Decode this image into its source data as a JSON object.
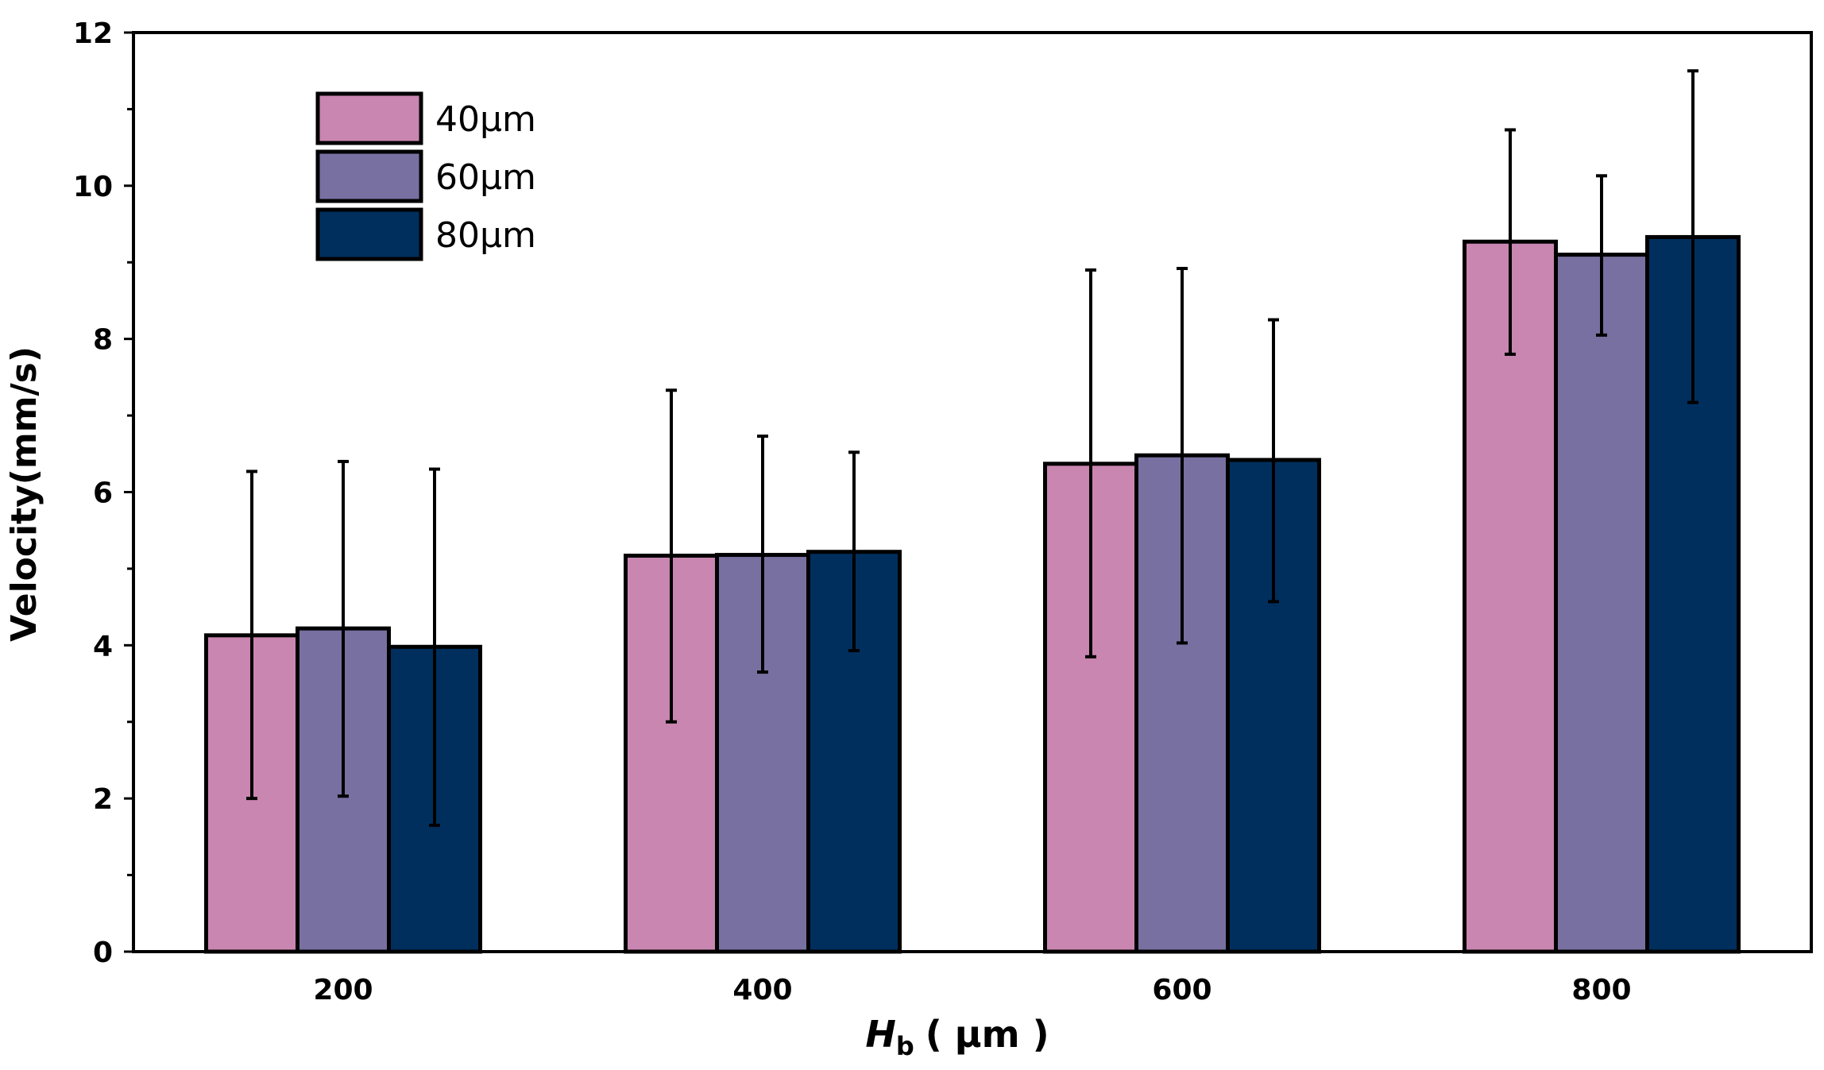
{
  "chart_data": {
    "type": "bar",
    "title": "",
    "xlabel": "H",
    "xlabel_sub": "b",
    "xlabel_unit": "( μm )",
    "ylabel": "Velocity(mm/s)",
    "ylim": [
      0,
      12
    ],
    "yticks": [
      0,
      2,
      4,
      6,
      8,
      10,
      12
    ],
    "ytick_labels": [
      "0",
      "2",
      "4",
      "6",
      "8",
      "10",
      "12"
    ],
    "categories": [
      "200",
      "400",
      "600",
      "800"
    ],
    "legend_position": "top-left",
    "series": [
      {
        "name": "40μm",
        "color": "#C986B0",
        "values": [
          4.13,
          5.17,
          6.37,
          9.27
        ],
        "err_low": [
          2.0,
          3.0,
          3.85,
          7.8
        ],
        "err_high": [
          6.27,
          7.33,
          8.9,
          10.73
        ]
      },
      {
        "name": "60μm",
        "color": "#7870A0",
        "values": [
          4.22,
          5.18,
          6.48,
          9.1
        ],
        "err_low": [
          2.03,
          3.65,
          4.03,
          8.05
        ],
        "err_high": [
          6.4,
          6.73,
          8.92,
          10.13
        ]
      },
      {
        "name": "80μm",
        "color": "#002F5E",
        "values": [
          3.98,
          5.22,
          6.42,
          9.33
        ],
        "err_low": [
          1.65,
          3.93,
          4.57,
          7.17
        ],
        "err_high": [
          6.3,
          6.52,
          8.25,
          11.5
        ]
      }
    ]
  }
}
